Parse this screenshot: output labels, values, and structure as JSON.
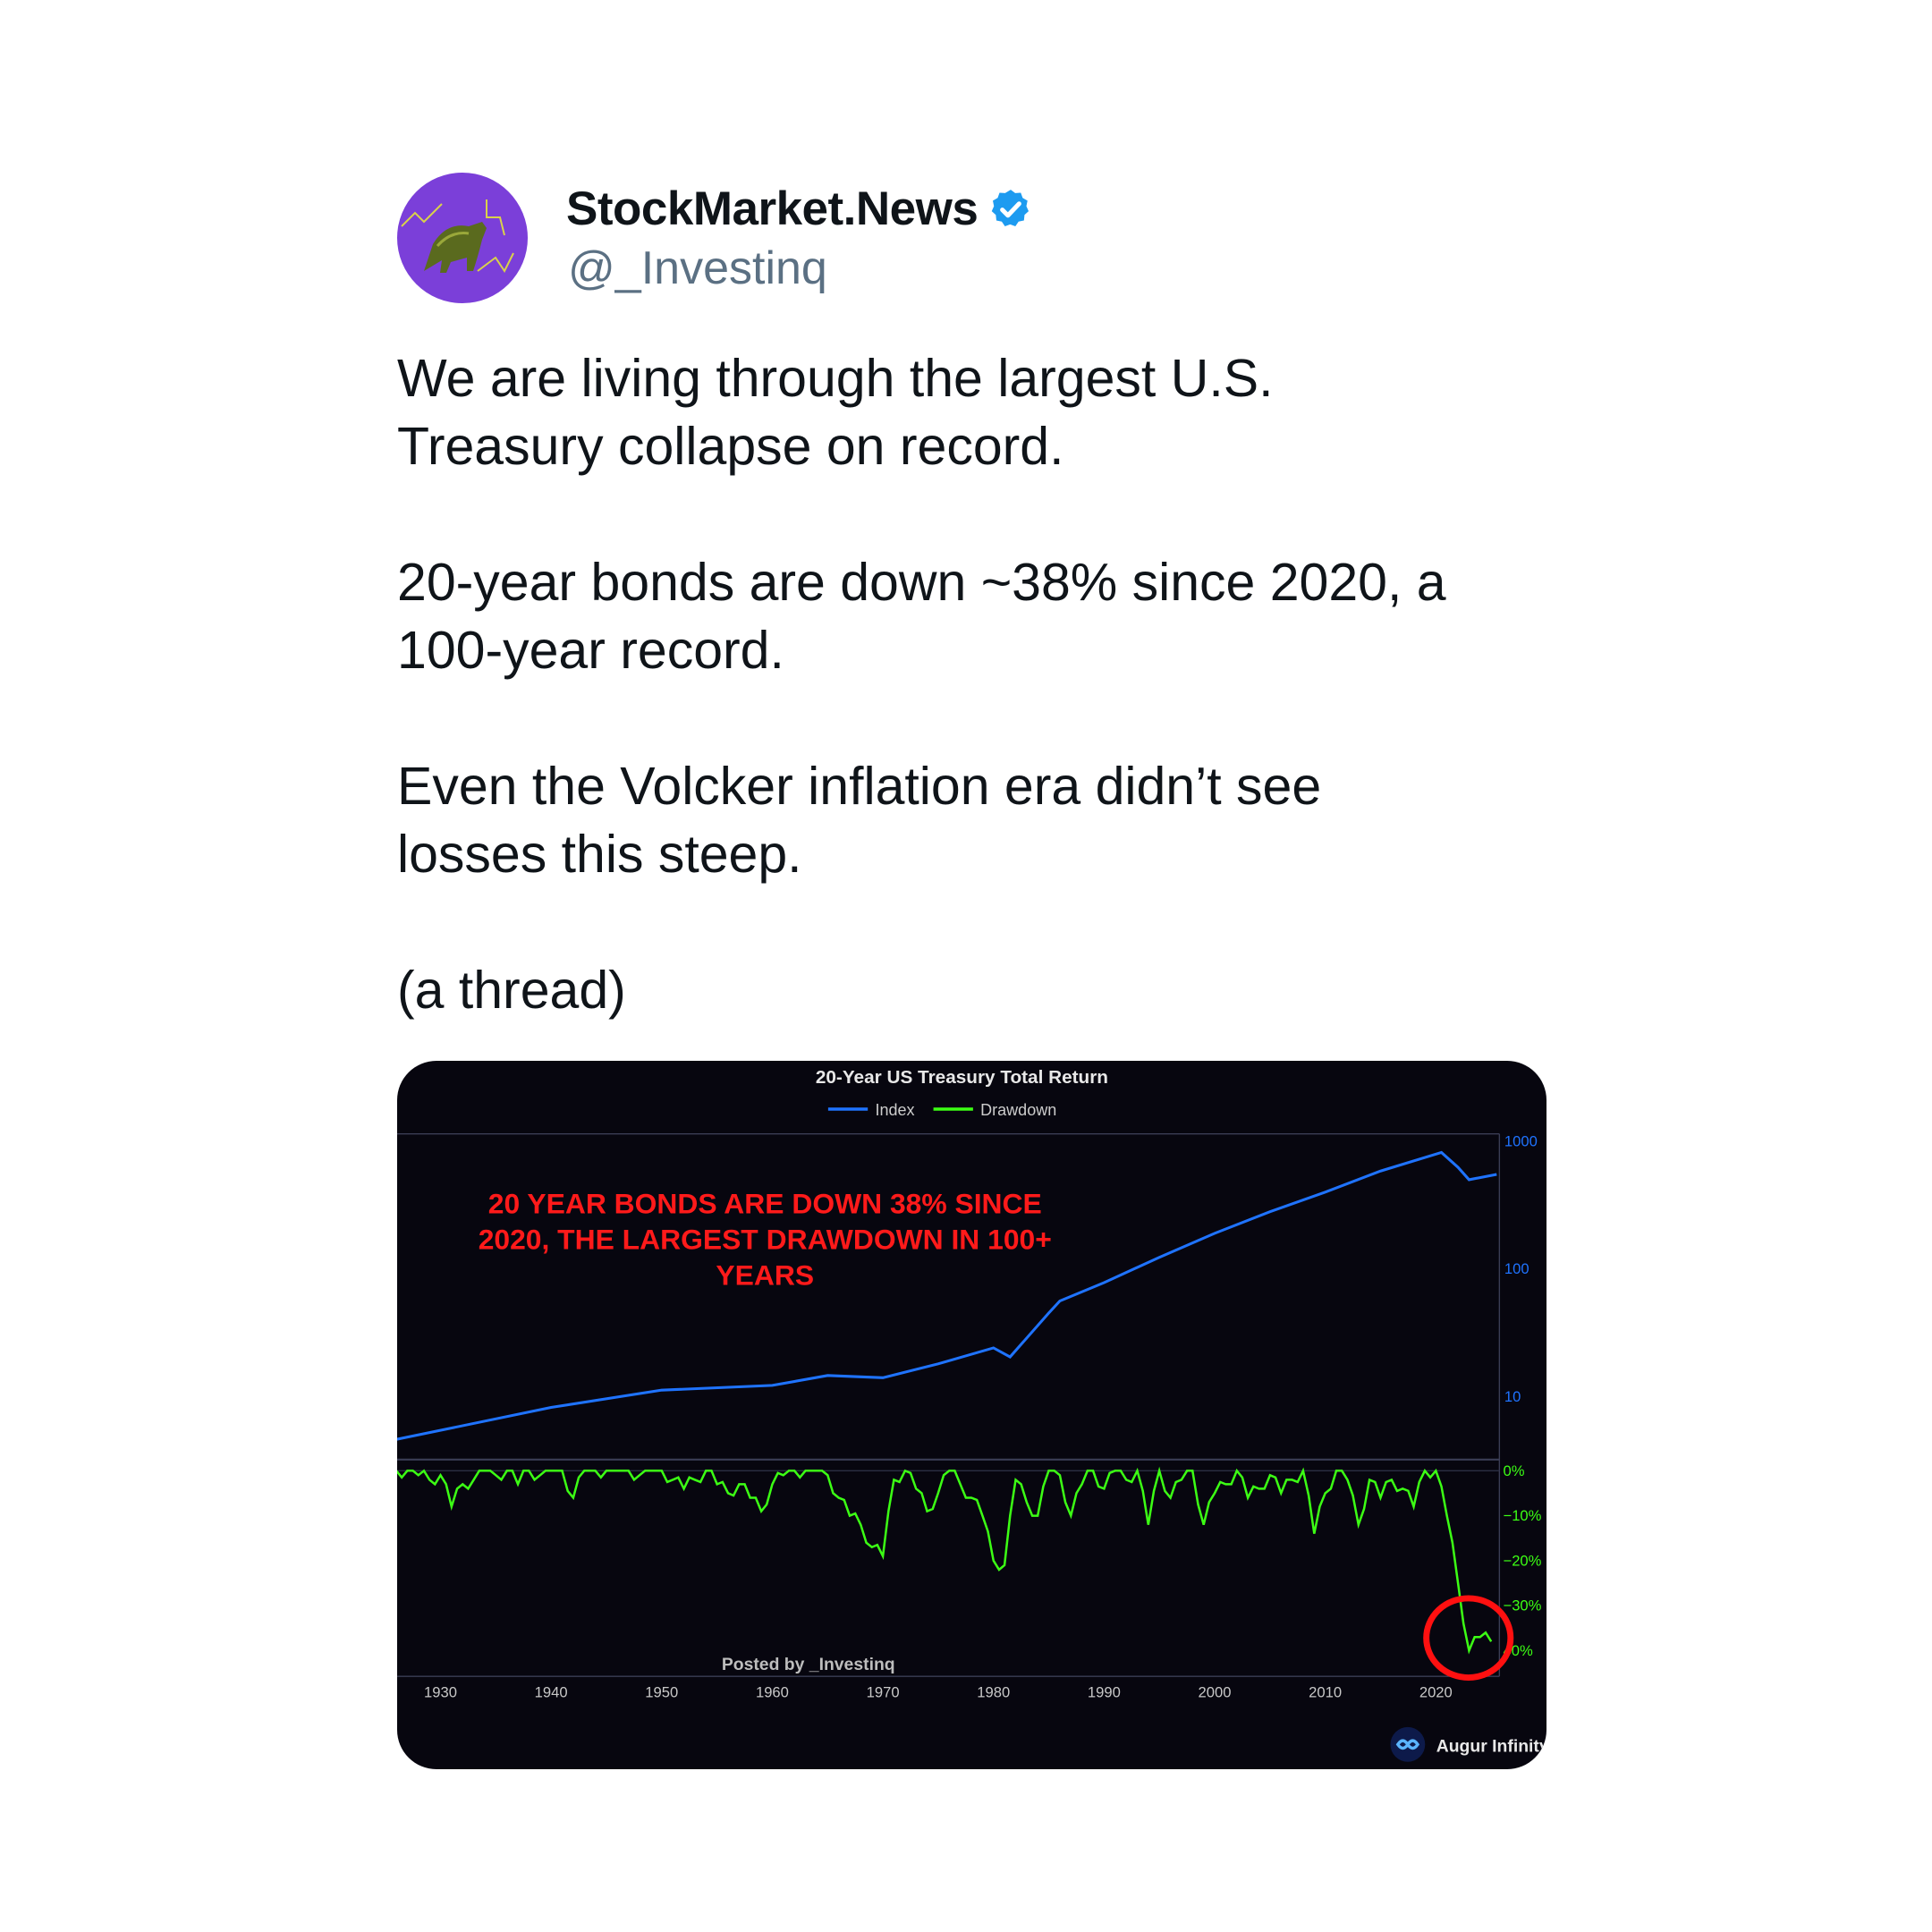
{
  "tweet": {
    "display_name": "StockMarket.News",
    "verified": true,
    "verified_color": "#1d9bf0",
    "handle": "@_Investinq",
    "avatar_icon": "bull-icon",
    "paragraphs": [
      "We are living through the largest U.S. Treasury collapse on record.",
      "20-year bonds are down ~38% since 2020, a 100-year record.",
      "Even the Volcker inflation era didn’t see losses this steep.",
      "(a thread)"
    ]
  },
  "chart_data": {
    "type": "line",
    "title": "20-Year US Treasury Total Return",
    "legend": [
      {
        "name": "Index",
        "color": "#1f73ff"
      },
      {
        "name": "Drawdown",
        "color": "#3cff14"
      }
    ],
    "legend_placement": "top",
    "annotation": [
      "20 YEAR BONDS ARE DOWN 38% SINCE",
      "2020, THE LARGEST DRAWDOWN IN 100+",
      "YEARS"
    ],
    "annotation_color": "#ff1a1a",
    "highlight": "red circle around 2022-2025 drawdown",
    "watermark": "Posted by _Investinq",
    "source_logo": "Augur Infinity",
    "x_ticks": [
      "1930",
      "1940",
      "1950",
      "1960",
      "1970",
      "1980",
      "1990",
      "2000",
      "2010",
      "2020"
    ],
    "xlim": [
      1926,
      2025.6
    ],
    "panels": [
      {
        "name": "Index",
        "scale": "log",
        "ylim": [
          1,
          1000
        ],
        "y_ticks": [
          "1000",
          "100",
          "10"
        ],
        "x": [
          1926,
          1940,
          1950,
          1960,
          1965,
          1970,
          1975,
          1980,
          1981.5,
          1985,
          1986,
          1990,
          1995,
          2000,
          2005,
          2010,
          2015,
          2020.5,
          2022,
          2023,
          2025.5
        ],
        "y": [
          4.6,
          8.2,
          11.2,
          12.2,
          14.6,
          14,
          18,
          24,
          20.4,
          45,
          56,
          78,
          123,
          190,
          281,
          400,
          585,
          818,
          625,
          500,
          550
        ]
      },
      {
        "name": "Drawdown",
        "scale": "linear",
        "unit": "%",
        "y_ticks": [
          "0%",
          "−10%",
          "−20%",
          "−30%",
          "40%"
        ],
        "x_start": 1926,
        "x_step": 1,
        "y": [
          0,
          0,
          -1,
          -2,
          -1,
          -8,
          -3,
          -2,
          0,
          -1,
          0,
          -3,
          0,
          -1,
          0,
          0,
          -6,
          0,
          0,
          0,
          0,
          0,
          -1,
          0,
          0,
          -2,
          -4,
          -2,
          0,
          -3,
          -5,
          -3,
          -6,
          -9,
          -3,
          -1,
          0,
          0,
          0,
          -1,
          -6,
          -10,
          -12,
          -17,
          -19,
          -2,
          0,
          -4,
          -9,
          -5,
          0,
          -3,
          -6,
          -10,
          -20,
          -21,
          -2,
          -7,
          -10,
          0,
          -1,
          -10,
          -3,
          0,
          -4,
          0,
          -2,
          0,
          -12,
          0,
          -6,
          -2,
          0,
          -12,
          -5,
          -3,
          0,
          -6,
          -4,
          -1,
          -5,
          -2,
          0,
          -14,
          -5,
          0,
          -2,
          -12,
          -2,
          -6,
          -2,
          -4,
          -8,
          0,
          0,
          -10,
          -25,
          -40,
          -37,
          -38
        ]
      }
    ]
  }
}
